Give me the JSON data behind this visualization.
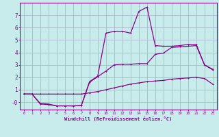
{
  "background_color": "#c8ecec",
  "grid_color": "#aaaacc",
  "line_color": "#880088",
  "spine_color": "#880088",
  "xlim": [
    -0.5,
    23.5
  ],
  "ylim": [
    -0.6,
    8.0
  ],
  "xticks": [
    0,
    1,
    2,
    3,
    4,
    5,
    6,
    7,
    8,
    9,
    10,
    11,
    12,
    13,
    14,
    15,
    16,
    17,
    18,
    19,
    20,
    21,
    22,
    23
  ],
  "yticks": [
    0,
    1,
    2,
    3,
    4,
    5,
    6,
    7
  ],
  "ytick_labels": [
    "-0",
    "1",
    "2",
    "3",
    "4",
    "5",
    "6",
    "7"
  ],
  "xlabel": "Windchill (Refroidissement éolien,°C)",
  "line1_x": [
    0,
    1,
    2,
    3,
    4,
    5,
    6,
    7,
    8,
    9,
    10,
    11,
    12,
    13,
    14,
    15,
    16,
    17,
    18,
    19,
    20,
    21,
    22,
    23
  ],
  "line1_y": [
    0.65,
    0.65,
    0.65,
    0.65,
    0.65,
    0.65,
    0.65,
    0.65,
    0.75,
    0.85,
    1.0,
    1.15,
    1.3,
    1.45,
    1.55,
    1.65,
    1.7,
    1.75,
    1.85,
    1.9,
    1.95,
    2.0,
    1.9,
    1.45
  ],
  "line2_x": [
    0,
    1,
    2,
    3,
    4,
    5,
    6,
    7,
    8,
    9,
    10,
    11,
    12,
    13,
    14,
    15,
    16,
    17,
    18,
    19,
    20,
    21,
    22,
    23
  ],
  "line2_y": [
    0.65,
    0.65,
    -0.15,
    -0.2,
    -0.3,
    -0.3,
    -0.3,
    -0.28,
    1.6,
    2.05,
    2.5,
    3.0,
    3.05,
    3.05,
    3.1,
    3.1,
    3.85,
    3.95,
    4.4,
    4.45,
    4.5,
    4.55,
    3.0,
    2.65
  ],
  "line3_x": [
    0,
    1,
    2,
    3,
    4,
    5,
    6,
    7,
    8,
    9,
    10,
    11,
    12,
    13,
    14,
    15,
    16,
    17,
    18,
    19,
    20,
    21,
    22,
    23
  ],
  "line3_y": [
    0.65,
    0.65,
    -0.1,
    -0.15,
    -0.3,
    -0.3,
    -0.3,
    -0.28,
    1.65,
    2.1,
    5.55,
    5.7,
    5.7,
    5.55,
    7.3,
    7.65,
    4.55,
    4.5,
    4.5,
    4.55,
    4.65,
    4.65,
    3.0,
    2.6
  ]
}
